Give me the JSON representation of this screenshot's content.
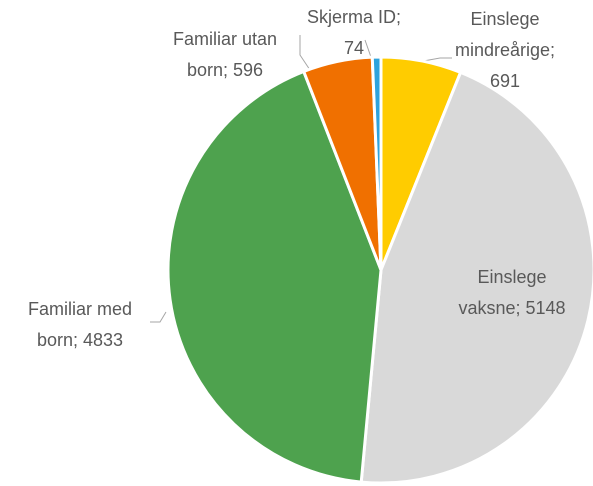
{
  "chart_data": {
    "type": "pie",
    "categories": [
      "Einslege mindreårige",
      "Einslege vaksne",
      "Familiar med born",
      "Familiar utan born",
      "Skjerma ID"
    ],
    "values": [
      691,
      5148,
      4833,
      596,
      74
    ],
    "colors": [
      "#ffcc00",
      "#d9d9d9",
      "#4ea24e",
      "#f07000",
      "#2ea3dc"
    ],
    "label_separator": "; "
  }
}
